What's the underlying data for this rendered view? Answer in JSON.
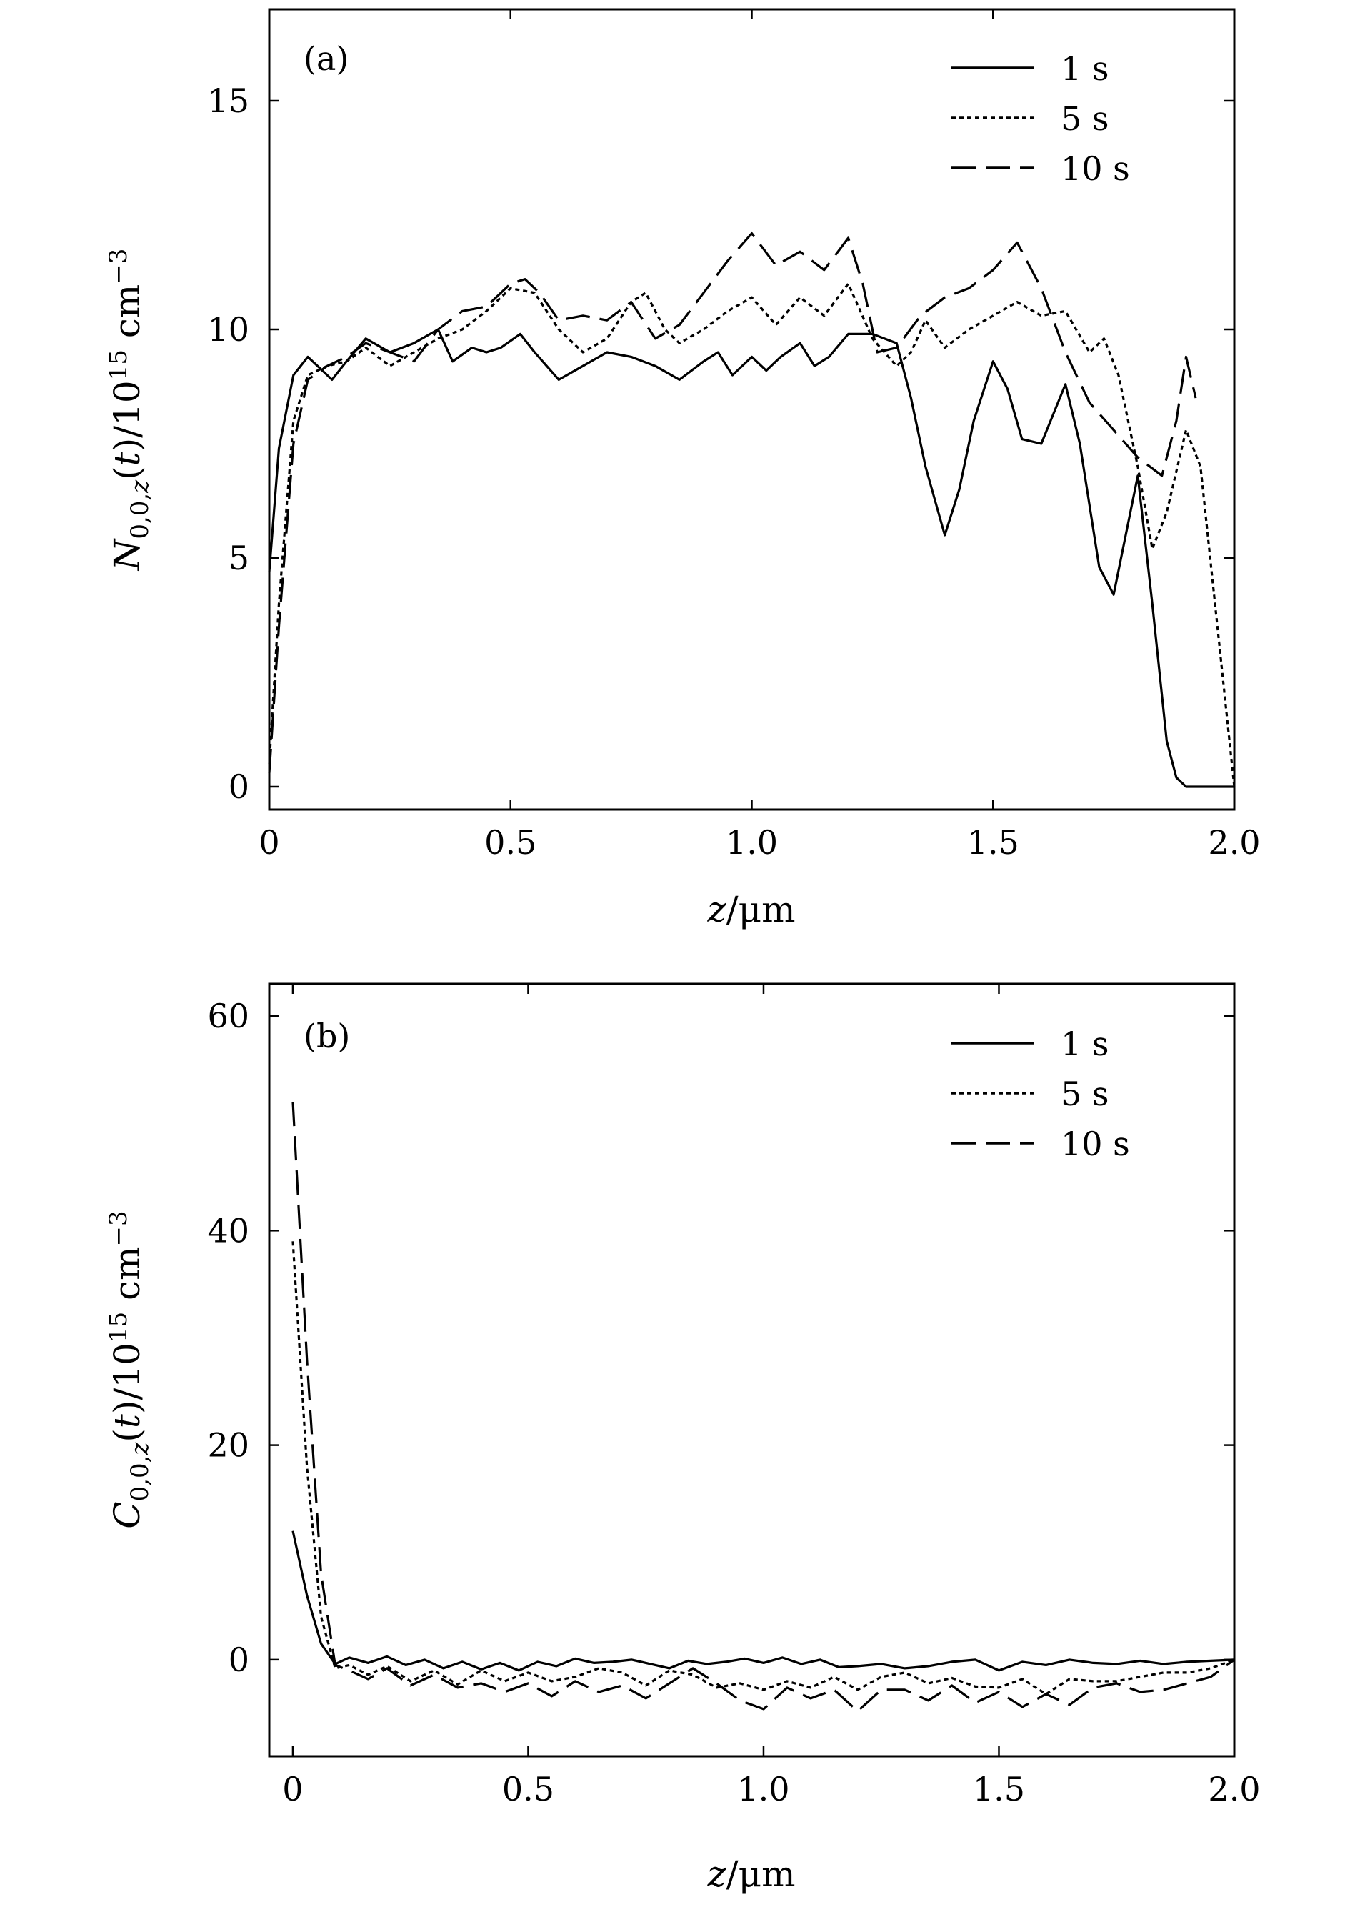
{
  "chart_data": [
    {
      "type": "line",
      "panel_label": "(a)",
      "xlabel": "z/μm",
      "ylabel": "N0,0,z(t)/10^15 cm^-3",
      "xlim": [
        0,
        2.0
      ],
      "ylim": [
        -0.5,
        17
      ],
      "xticks": [
        0,
        0.5,
        1.0,
        1.5,
        2.0
      ],
      "xtick_labels": [
        "0",
        "0.5",
        "1.0",
        "1.5",
        "2.0"
      ],
      "yticks": [
        0,
        5,
        10,
        15
      ],
      "ytick_labels": [
        "0",
        "5",
        "10",
        "15"
      ],
      "grid": false,
      "legend": {
        "position": "top-right",
        "entries": [
          {
            "label": "1 s",
            "style": "solid"
          },
          {
            "label": "5 s",
            "style": "dotted"
          },
          {
            "label": "10 s",
            "style": "dashed"
          }
        ]
      },
      "series": [
        {
          "name": "1 s",
          "style": "solid",
          "x": [
            0,
            0.02,
            0.05,
            0.08,
            0.1,
            0.13,
            0.16,
            0.2,
            0.25,
            0.3,
            0.35,
            0.38,
            0.42,
            0.45,
            0.48,
            0.52,
            0.55,
            0.6,
            0.65,
            0.7,
            0.75,
            0.8,
            0.85,
            0.9,
            0.93,
            0.96,
            1.0,
            1.03,
            1.06,
            1.1,
            1.13,
            1.16,
            1.2,
            1.25,
            1.3,
            1.33,
            1.36,
            1.4,
            1.43,
            1.46,
            1.5,
            1.53,
            1.56,
            1.6,
            1.65,
            1.68,
            1.72,
            1.75,
            1.8,
            1.83,
            1.86,
            1.88,
            1.9,
            1.95,
            2.0
          ],
          "y": [
            4.7,
            7.4,
            9.0,
            9.4,
            9.2,
            8.9,
            9.3,
            9.8,
            9.5,
            9.7,
            10.0,
            9.3,
            9.6,
            9.5,
            9.6,
            9.9,
            9.5,
            8.9,
            9.2,
            9.5,
            9.4,
            9.2,
            8.9,
            9.3,
            9.5,
            9.0,
            9.4,
            9.1,
            9.4,
            9.7,
            9.2,
            9.4,
            9.9,
            9.9,
            9.7,
            8.5,
            7.0,
            5.5,
            6.5,
            8.0,
            9.3,
            8.7,
            7.6,
            7.5,
            8.8,
            7.5,
            4.8,
            4.2,
            6.8,
            4.0,
            1.0,
            0.2,
            0.0,
            0.0,
            0.0
          ]
        },
        {
          "name": "5 s",
          "style": "dotted",
          "x": [
            0,
            0.02,
            0.05,
            0.08,
            0.12,
            0.16,
            0.2,
            0.25,
            0.3,
            0.35,
            0.4,
            0.45,
            0.5,
            0.55,
            0.6,
            0.65,
            0.7,
            0.75,
            0.78,
            0.82,
            0.85,
            0.9,
            0.95,
            1.0,
            1.05,
            1.1,
            1.15,
            1.2,
            1.25,
            1.3,
            1.33,
            1.36,
            1.4,
            1.45,
            1.5,
            1.55,
            1.6,
            1.65,
            1.7,
            1.73,
            1.76,
            1.8,
            1.83,
            1.86,
            1.9,
            1.93,
            1.96,
            2.0
          ],
          "y": [
            0.5,
            4.0,
            8.0,
            9.0,
            9.2,
            9.3,
            9.6,
            9.2,
            9.5,
            9.8,
            10.0,
            10.4,
            10.9,
            10.8,
            10.0,
            9.5,
            9.8,
            10.6,
            10.8,
            10.0,
            9.7,
            10.0,
            10.4,
            10.7,
            10.1,
            10.7,
            10.3,
            11.0,
            9.8,
            9.2,
            9.5,
            10.2,
            9.6,
            10.0,
            10.3,
            10.6,
            10.3,
            10.4,
            9.5,
            9.8,
            9.0,
            7.0,
            5.2,
            6.0,
            7.8,
            7.0,
            4.0,
            0.0
          ]
        },
        {
          "name": "10 s",
          "style": "dashed",
          "x": [
            0,
            0.02,
            0.05,
            0.08,
            0.12,
            0.16,
            0.2,
            0.25,
            0.3,
            0.35,
            0.4,
            0.45,
            0.5,
            0.53,
            0.56,
            0.6,
            0.65,
            0.7,
            0.75,
            0.8,
            0.85,
            0.9,
            0.95,
            1.0,
            1.05,
            1.1,
            1.15,
            1.2,
            1.23,
            1.26,
            1.3,
            1.35,
            1.4,
            1.45,
            1.5,
            1.55,
            1.6,
            1.65,
            1.7,
            1.75,
            1.8,
            1.85,
            1.88,
            1.9,
            1.92
          ],
          "y": [
            0.3,
            3.5,
            7.5,
            8.9,
            9.2,
            9.4,
            9.7,
            9.5,
            9.3,
            10.0,
            10.4,
            10.5,
            11.0,
            11.1,
            10.8,
            10.2,
            10.3,
            10.2,
            10.6,
            9.8,
            10.1,
            10.8,
            11.5,
            12.1,
            11.4,
            11.7,
            11.3,
            12.0,
            11.0,
            9.5,
            9.6,
            10.3,
            10.7,
            10.9,
            11.3,
            11.9,
            10.9,
            9.5,
            8.4,
            7.8,
            7.2,
            6.8,
            8.0,
            9.4,
            8.5
          ]
        }
      ]
    },
    {
      "type": "line",
      "panel_label": "(b)",
      "xlabel": "z/μm",
      "ylabel": "C0,0,z(t)/10^15 cm^-3",
      "xlim": [
        -0.05,
        2.0
      ],
      "ylim": [
        -9,
        63
      ],
      "xticks": [
        0,
        0.5,
        1.0,
        1.5,
        2.0
      ],
      "xtick_labels": [
        "0",
        "0.5",
        "1.0",
        "1.5",
        "2.0"
      ],
      "yticks": [
        0,
        20,
        40,
        60
      ],
      "ytick_labels": [
        "0",
        "20",
        "40",
        "60"
      ],
      "grid": false,
      "legend": {
        "position": "top-right",
        "entries": [
          {
            "label": "1 s",
            "style": "solid"
          },
          {
            "label": "5 s",
            "style": "dotted"
          },
          {
            "label": "10 s",
            "style": "dashed"
          }
        ]
      },
      "series": [
        {
          "name": "1 s",
          "style": "solid",
          "x": [
            0,
            0.03,
            0.06,
            0.09,
            0.12,
            0.16,
            0.2,
            0.24,
            0.28,
            0.32,
            0.36,
            0.4,
            0.44,
            0.48,
            0.52,
            0.56,
            0.6,
            0.64,
            0.68,
            0.72,
            0.76,
            0.8,
            0.84,
            0.88,
            0.92,
            0.96,
            1.0,
            1.04,
            1.08,
            1.12,
            1.16,
            1.2,
            1.25,
            1.3,
            1.35,
            1.4,
            1.45,
            1.5,
            1.55,
            1.6,
            1.65,
            1.7,
            1.75,
            1.8,
            1.85,
            1.9,
            1.95,
            2.0
          ],
          "y": [
            12.0,
            6.0,
            1.5,
            -0.4,
            0.2,
            -0.3,
            0.3,
            -0.5,
            0.0,
            -0.8,
            -0.2,
            -0.9,
            -0.3,
            -1.0,
            -0.2,
            -0.6,
            0.1,
            -0.3,
            -0.2,
            0.0,
            -0.4,
            -0.8,
            -0.1,
            -0.4,
            -0.2,
            0.1,
            -0.3,
            0.2,
            -0.4,
            0.0,
            -0.7,
            -0.6,
            -0.4,
            -0.8,
            -0.6,
            -0.2,
            0.0,
            -1.0,
            -0.2,
            -0.5,
            0.0,
            -0.3,
            -0.4,
            -0.1,
            -0.4,
            -0.2,
            -0.1,
            0.0
          ]
        },
        {
          "name": "5 s",
          "style": "dotted",
          "x": [
            0,
            0.03,
            0.06,
            0.09,
            0.12,
            0.16,
            0.2,
            0.25,
            0.3,
            0.35,
            0.4,
            0.45,
            0.5,
            0.55,
            0.6,
            0.65,
            0.7,
            0.75,
            0.8,
            0.85,
            0.9,
            0.95,
            1.0,
            1.05,
            1.1,
            1.15,
            1.2,
            1.25,
            1.3,
            1.35,
            1.4,
            1.45,
            1.5,
            1.55,
            1.6,
            1.65,
            1.7,
            1.75,
            1.8,
            1.85,
            1.9,
            1.95,
            2.0
          ],
          "y": [
            39.0,
            18.0,
            4.0,
            -0.8,
            -0.5,
            -1.4,
            -0.6,
            -2.0,
            -1.0,
            -2.3,
            -1.0,
            -2.0,
            -1.2,
            -2.0,
            -1.6,
            -0.8,
            -1.2,
            -2.4,
            -1.0,
            -1.4,
            -2.6,
            -2.2,
            -2.8,
            -2.0,
            -2.6,
            -1.6,
            -2.8,
            -1.6,
            -1.2,
            -2.2,
            -1.7,
            -2.5,
            -2.6,
            -1.8,
            -3.2,
            -1.8,
            -2.0,
            -2.0,
            -1.6,
            -1.2,
            -1.2,
            -0.8,
            0.0
          ]
        },
        {
          "name": "10 s",
          "style": "dashed",
          "x": [
            0,
            0.03,
            0.06,
            0.09,
            0.12,
            0.16,
            0.2,
            0.25,
            0.3,
            0.35,
            0.4,
            0.45,
            0.5,
            0.55,
            0.6,
            0.65,
            0.7,
            0.75,
            0.8,
            0.85,
            0.9,
            0.95,
            1.0,
            1.05,
            1.1,
            1.15,
            1.2,
            1.25,
            1.3,
            1.35,
            1.4,
            1.45,
            1.5,
            1.55,
            1.6,
            1.65,
            1.7,
            1.75,
            1.8,
            1.85,
            1.9,
            1.95,
            2.0
          ],
          "y": [
            52.0,
            28.0,
            8.0,
            -0.5,
            -1.0,
            -1.8,
            -0.8,
            -2.4,
            -1.4,
            -2.6,
            -2.2,
            -3.0,
            -2.2,
            -3.4,
            -2.0,
            -3.0,
            -2.4,
            -3.6,
            -2.2,
            -0.8,
            -2.2,
            -3.8,
            -4.6,
            -2.6,
            -3.6,
            -2.8,
            -4.8,
            -2.8,
            -2.8,
            -3.8,
            -2.4,
            -4.0,
            -3.0,
            -4.4,
            -3.2,
            -4.2,
            -2.6,
            -2.2,
            -3.0,
            -2.8,
            -2.2,
            -1.6,
            0.0
          ]
        }
      ]
    }
  ]
}
